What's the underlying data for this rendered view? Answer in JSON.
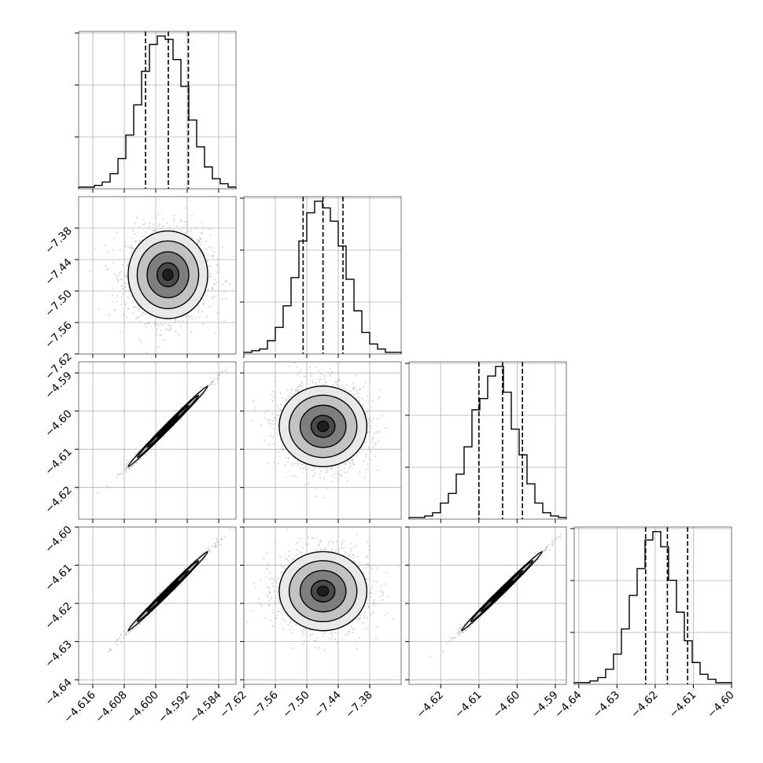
{
  "chart_data": {
    "type": "corner",
    "grid": true,
    "colors": {
      "line": "#000000",
      "grid": "#b0b0b0",
      "points": "#bbbbbb",
      "density": [
        "#e9e9e9",
        "#c2c2c2",
        "#7e7e7e",
        "#4a4a4a",
        "#1e1e1e"
      ]
    },
    "params": [
      {
        "range": [
          -4.6196,
          -4.5796
        ],
        "ticks": [
          -4.616,
          -4.608,
          -4.6,
          -4.592,
          -4.584
        ],
        "tick_labels": [
          "−4.616",
          "−4.608",
          "−4.600",
          "−4.592",
          "−4.584"
        ],
        "quantiles": [
          -4.6026,
          -4.5968,
          -4.5917
        ]
      },
      {
        "range": [
          -7.62,
          -7.32
        ],
        "ticks": [
          -7.62,
          -7.56,
          -7.5,
          -7.44,
          -7.38
        ],
        "tick_labels": [
          "−7.62",
          "−7.56",
          "−7.50",
          "−7.44",
          "−7.38"
        ],
        "quantiles": [
          -7.507,
          -7.469,
          -7.431
        ]
      },
      {
        "range": [
          -4.6283,
          -4.5871
        ],
        "ticks": [
          -4.62,
          -4.61,
          -4.6,
          -4.59
        ],
        "tick_labels": [
          "−4.62",
          "−4.61",
          "−4.60",
          "−4.59"
        ],
        "quantiles": [
          -4.61,
          -4.6038,
          -4.5986
        ]
      },
      {
        "range": [
          -4.6412,
          -4.6
        ],
        "ticks": [
          -4.64,
          -4.63,
          -4.62,
          -4.61,
          -4.6
        ],
        "tick_labels": [
          "−4.64",
          "−4.63",
          "−4.62",
          "−4.61",
          "−4.60"
        ],
        "quantiles": [
          -4.6225,
          -4.6168,
          -4.6115
        ]
      }
    ],
    "histograms": [
      {
        "param": 0,
        "counts": [
          1,
          1,
          2,
          4,
          9,
          18,
          32,
          50,
          70,
          86,
          91,
          89,
          77,
          61,
          41,
          25,
          13,
          6,
          3,
          1
        ]
      },
      {
        "param": 1,
        "counts": [
          1,
          2,
          3,
          8,
          16,
          29,
          46,
          68,
          85,
          92,
          88,
          80,
          65,
          45,
          26,
          13,
          6,
          3,
          1,
          1
        ]
      },
      {
        "param": 2,
        "counts": [
          1,
          1,
          2,
          4,
          10,
          16,
          28,
          45,
          68,
          75,
          89,
          95,
          79,
          56,
          40,
          22,
          10,
          4,
          2,
          1
        ]
      },
      {
        "param": 3,
        "counts": [
          1,
          1,
          2,
          4,
          9,
          18,
          33,
          53,
          69,
          86,
          91,
          82,
          62,
          43,
          26,
          13,
          6,
          3,
          1,
          1
        ]
      }
    ],
    "pairs": [
      {
        "x": 0,
        "y": 1,
        "correlation": 0.0,
        "center": [
          -4.5969,
          -7.469
        ],
        "spread": [
          0.0046,
          0.038
        ]
      },
      {
        "x": 0,
        "y": 2,
        "correlation": 0.995,
        "center": [
          -4.5969,
          -4.604
        ],
        "spread": [
          0.0046,
          0.0048
        ]
      },
      {
        "x": 0,
        "y": 3,
        "correlation": 0.995,
        "center": [
          -4.5969,
          -4.6168
        ],
        "spread": [
          0.0046,
          0.0047
        ]
      },
      {
        "x": 1,
        "y": 2,
        "correlation": 0.0,
        "center": [
          -7.469,
          -4.604
        ],
        "spread": [
          0.038,
          0.0048
        ]
      },
      {
        "x": 1,
        "y": 3,
        "correlation": 0.0,
        "center": [
          -7.469,
          -4.6168
        ],
        "spread": [
          0.038,
          0.0047
        ]
      },
      {
        "x": 2,
        "y": 3,
        "correlation": 0.995,
        "center": [
          -4.604,
          -4.6168
        ],
        "spread": [
          0.0048,
          0.0047
        ]
      }
    ]
  }
}
